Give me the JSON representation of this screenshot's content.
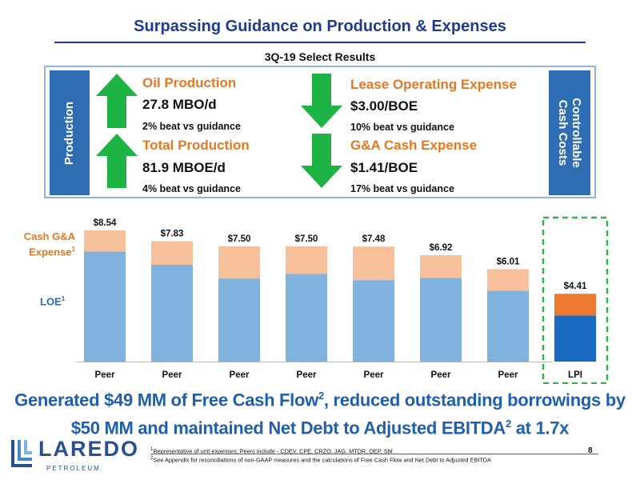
{
  "header": {
    "title": "Surpassing Guidance on Production & Expenses",
    "subtitle": "3Q-19 Select Results"
  },
  "panel": {
    "left_label": "Production",
    "right_label_line1": "Controllable",
    "right_label_line2": "Cash Costs",
    "metrics": [
      {
        "title": "Oil Production",
        "value": "27.8 MBO/d",
        "beat": "2% beat vs guidance",
        "direction": "up"
      },
      {
        "title": "Total Production",
        "value": "81.9 MBOE/d",
        "beat": "4% beat vs guidance",
        "direction": "up"
      },
      {
        "title": "Lease Operating Expense",
        "value": "$3.00/BOE",
        "beat": "10% beat vs guidance",
        "direction": "down"
      },
      {
        "title": "G&A Cash Expense",
        "value": "$1.41/BOE",
        "beat": "17% beat vs guidance",
        "direction": "down"
      }
    ],
    "arrow_icon": "green-arrow-icon",
    "colors": {
      "arrow": "#1db345",
      "box": "#2e6db4",
      "metric_title": "#e87722"
    }
  },
  "chart_data": {
    "type": "bar",
    "stacked": true,
    "categories": [
      "Peer",
      "Peer",
      "Peer",
      "Peer",
      "Peer",
      "Peer",
      "Peer",
      "LPI"
    ],
    "totals_labels": [
      "$8.54",
      "$7.83",
      "$7.50",
      "$7.50",
      "$7.48",
      "$6.92",
      "$6.01",
      "$4.41"
    ],
    "series": [
      {
        "name": "LOE",
        "values": [
          7.15,
          6.3,
          5.4,
          5.7,
          5.3,
          5.45,
          4.6,
          3.0
        ]
      },
      {
        "name": "Cash G&A Expense",
        "values": [
          1.39,
          1.53,
          2.1,
          1.8,
          2.18,
          1.47,
          1.41,
          1.41
        ]
      }
    ],
    "totals": [
      8.54,
      7.83,
      7.5,
      7.5,
      7.48,
      6.92,
      6.01,
      4.41
    ],
    "ylim": [
      0,
      9
    ],
    "grid": false,
    "colors": {
      "peer_loe": "#7fb2df",
      "peer_ga": "#f6c09a",
      "lpi_loe": "#1a6cc0",
      "lpi_ga": "#ee7a30",
      "highlight_border": "#2bb54a"
    },
    "legend": {
      "ga_label": "Cash G&A",
      "ga_label2": "Expense",
      "ga_sup": "1",
      "loe_label": "LOE",
      "loe_sup": "1"
    }
  },
  "headline": {
    "line1": "Generated $49 MM of Free Cash Flow",
    "line1_sup": "2",
    "line1_rest": ", reduced outstanding borrowings by",
    "line2": "$50 MM and maintained Net Debt to Adjusted EBITDA",
    "line2_sup": "2",
    "line2_rest": " at 1.7x"
  },
  "logo": {
    "name": "LAREDO",
    "sub": "PETROLEUM"
  },
  "footnotes": {
    "note1_sup": "1",
    "note1": "Representative of unit expenses; Peers include - CDEV, CPE, CRZO, JAG, MTDR, QEP, SM",
    "note2_sup": "2",
    "note2": "See Appendix for reconciliations of non-GAAP measures and the calculations of Free Cash Flow and Net Debt to Adjusted EBITDA"
  },
  "page_number": "8"
}
